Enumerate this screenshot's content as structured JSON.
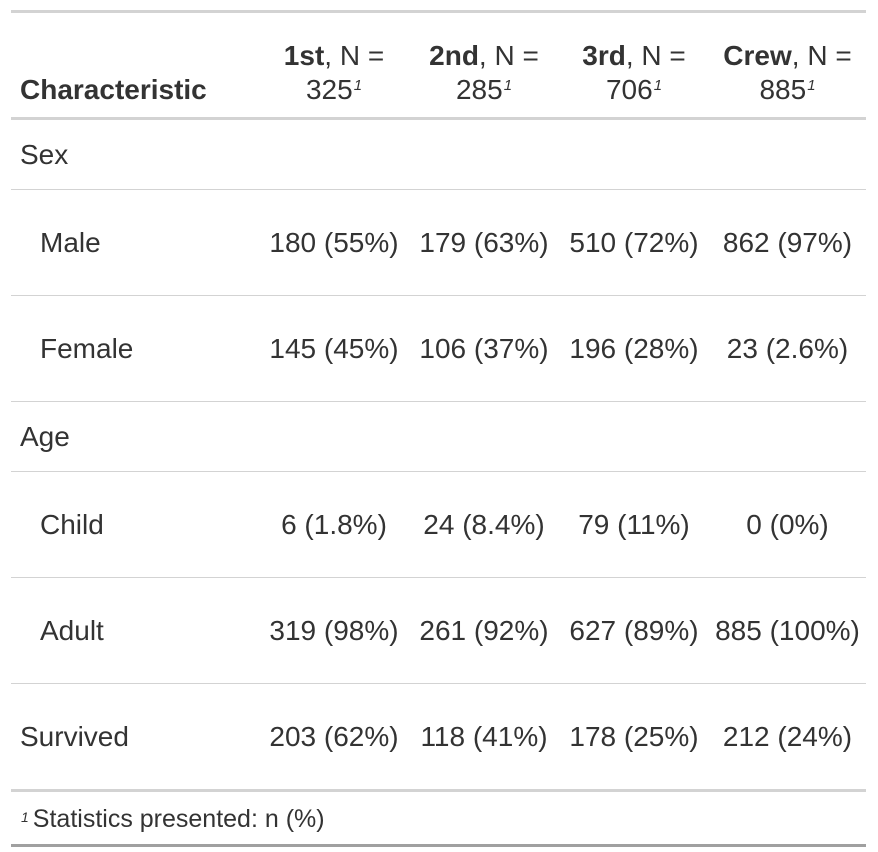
{
  "header": {
    "stub_label": "Characteristic",
    "columns": [
      {
        "name": "1st",
        "rest": ", N = ",
        "n": "325",
        "mark": "1"
      },
      {
        "name": "2nd",
        "rest": ", N = ",
        "n": "285",
        "mark": "1"
      },
      {
        "name": "3rd",
        "rest": ", N = ",
        "n": "706",
        "mark": "1"
      },
      {
        "name": "Crew",
        "rest": ", N = ",
        "n": "885",
        "mark": "1"
      }
    ]
  },
  "rows": {
    "sex": {
      "label": "Sex"
    },
    "male": {
      "label": "Male",
      "cells": [
        "180 (55%)",
        "179 (63%)",
        "510 (72%)",
        "862 (97%)"
      ]
    },
    "female": {
      "label": "Female",
      "cells": [
        "145 (45%)",
        "106 (37%)",
        "196 (28%)",
        "23 (2.6%)"
      ]
    },
    "age": {
      "label": "Age"
    },
    "child": {
      "label": "Child",
      "cells": [
        "6 (1.8%)",
        "24 (8.4%)",
        "79 (11%)",
        "0 (0%)"
      ]
    },
    "adult": {
      "label": "Adult",
      "cells": [
        "319 (98%)",
        "261 (92%)",
        "627 (89%)",
        "885 (100%)"
      ]
    },
    "survived": {
      "label": "Survived",
      "cells": [
        "203 (62%)",
        "118 (41%)",
        "178 (25%)",
        "212 (24%)"
      ]
    }
  },
  "footnote": {
    "mark": "1",
    "text": "Statistics presented: n (%)"
  }
}
